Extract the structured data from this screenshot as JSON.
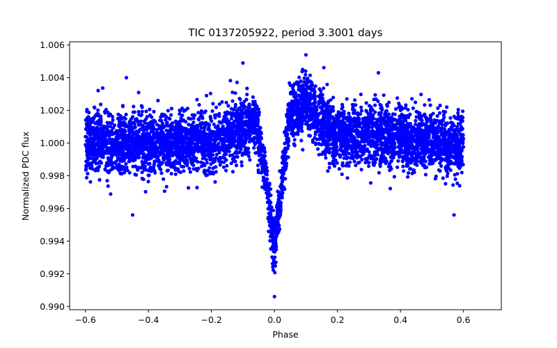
{
  "chart_data": {
    "type": "scatter",
    "title": "TIC 0137205922, period 3.3001 days",
    "xlabel": "Phase",
    "ylabel": "Normalized PDC flux",
    "xlim": [
      -0.65,
      0.72
    ],
    "ylim": [
      0.9898,
      1.0062
    ],
    "x_ticks": [
      -0.6,
      -0.4,
      -0.2,
      0.0,
      0.2,
      0.4,
      0.6
    ],
    "x_tick_labels": [
      "−0.6",
      "−0.4",
      "−0.2",
      "0.0",
      "0.2",
      "0.4",
      "0.6"
    ],
    "y_ticks": [
      0.99,
      0.992,
      0.994,
      0.996,
      0.998,
      1.0,
      1.002,
      1.004,
      1.006
    ],
    "y_tick_labels": [
      "0.990",
      "0.992",
      "0.994",
      "0.996",
      "0.998",
      "1.000",
      "1.002",
      "1.004",
      "1.006"
    ],
    "grid": false,
    "legend": "none",
    "marker_color": "#0000ff",
    "series": [
      {
        "phase_range": [
          -0.6,
          0.6
        ],
        "baseline_flux": 1.0,
        "scatter_std": 0.0009,
        "profile": [
          {
            "phase": -0.6,
            "flux": 1.0
          },
          {
            "phase": -0.2,
            "flux": 1.0
          },
          {
            "phase": -0.12,
            "flux": 1.0008
          },
          {
            "phase": -0.06,
            "flux": 1.0012
          },
          {
            "phase": -0.03,
            "flux": 0.9985
          },
          {
            "phase": -0.015,
            "flux": 0.996
          },
          {
            "phase": 0.0,
            "flux": 0.9935
          },
          {
            "phase": 0.015,
            "flux": 0.996
          },
          {
            "phase": 0.03,
            "flux": 0.999
          },
          {
            "phase": 0.05,
            "flux": 1.0018
          },
          {
            "phase": 0.1,
            "flux": 1.0025
          },
          {
            "phase": 0.14,
            "flux": 1.0015
          },
          {
            "phase": 0.2,
            "flux": 1.0005
          },
          {
            "phase": 0.6,
            "flux": 1.0
          }
        ],
        "outliers": [
          {
            "phase": 0.1,
            "flux": 1.0054
          },
          {
            "phase": -0.1,
            "flux": 1.0049
          },
          {
            "phase": 0.0,
            "flux": 0.9906
          },
          {
            "phase": -0.45,
            "flux": 0.9956
          },
          {
            "phase": 0.57,
            "flux": 0.9956
          },
          {
            "phase": 0.33,
            "flux": 1.0043
          },
          {
            "phase": -0.47,
            "flux": 1.004
          }
        ]
      }
    ]
  }
}
